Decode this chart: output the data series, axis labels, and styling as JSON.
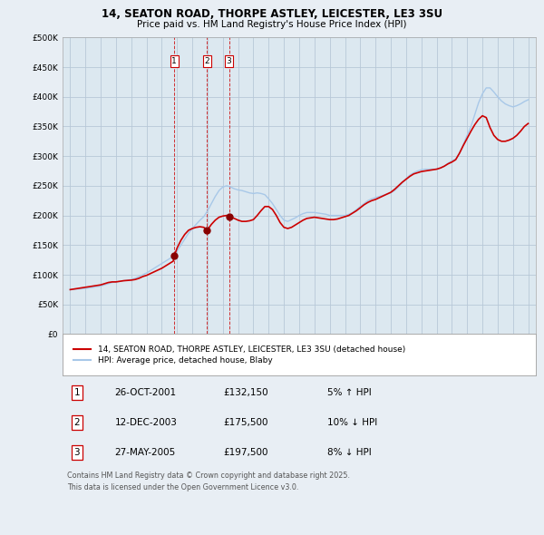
{
  "title_line1": "14, SEATON ROAD, THORPE ASTLEY, LEICESTER, LE3 3SU",
  "title_line2": "Price paid vs. HM Land Registry's House Price Index (HPI)",
  "legend_line1": "14, SEATON ROAD, THORPE ASTLEY, LEICESTER, LE3 3SU (detached house)",
  "legend_line2": "HPI: Average price, detached house, Blaby",
  "footer": "Contains HM Land Registry data © Crown copyright and database right 2025.\nThis data is licensed under the Open Government Licence v3.0.",
  "transactions": [
    {
      "num": 1,
      "date": "26-OCT-2001",
      "price": 132150,
      "pct": "5%",
      "dir": "↑",
      "x_year": 2001.82
    },
    {
      "num": 2,
      "date": "12-DEC-2003",
      "price": 175500,
      "pct": "10%",
      "dir": "↓",
      "x_year": 2003.95
    },
    {
      "num": 3,
      "date": "27-MAY-2005",
      "price": 197500,
      "pct": "8%",
      "dir": "↓",
      "x_year": 2005.4
    }
  ],
  "hpi_color": "#a8c8e8",
  "price_color": "#CC0000",
  "background_color": "#e8eef4",
  "plot_bg_color": "#dce8f0",
  "grid_color": "#b8c8d8",
  "ylim": [
    0,
    500000
  ],
  "xlim": [
    1994.5,
    2025.5
  ],
  "yticks": [
    0,
    50000,
    100000,
    150000,
    200000,
    250000,
    300000,
    350000,
    400000,
    450000,
    500000
  ],
  "ytick_labels": [
    "£0",
    "£50K",
    "£100K",
    "£150K",
    "£200K",
    "£250K",
    "£300K",
    "£350K",
    "£400K",
    "£450K",
    "£500K"
  ],
  "hpi_data": [
    [
      1995.0,
      75000
    ],
    [
      1995.25,
      75500
    ],
    [
      1995.5,
      76000
    ],
    [
      1995.75,
      76500
    ],
    [
      1996.0,
      77000
    ],
    [
      1996.25,
      78000
    ],
    [
      1996.5,
      79000
    ],
    [
      1996.75,
      80000
    ],
    [
      1997.0,
      81000
    ],
    [
      1997.25,
      83000
    ],
    [
      1997.5,
      85000
    ],
    [
      1997.75,
      87000
    ],
    [
      1998.0,
      88000
    ],
    [
      1998.25,
      89000
    ],
    [
      1998.5,
      90000
    ],
    [
      1998.75,
      91000
    ],
    [
      1999.0,
      92000
    ],
    [
      1999.25,
      94000
    ],
    [
      1999.5,
      97000
    ],
    [
      1999.75,
      100000
    ],
    [
      2000.0,
      103000
    ],
    [
      2000.25,
      107000
    ],
    [
      2000.5,
      111000
    ],
    [
      2000.75,
      115000
    ],
    [
      2001.0,
      119000
    ],
    [
      2001.25,
      123000
    ],
    [
      2001.5,
      127000
    ],
    [
      2001.75,
      131000
    ],
    [
      2002.0,
      140000
    ],
    [
      2002.25,
      150000
    ],
    [
      2002.5,
      160000
    ],
    [
      2002.75,
      170000
    ],
    [
      2003.0,
      178000
    ],
    [
      2003.25,
      185000
    ],
    [
      2003.5,
      192000
    ],
    [
      2003.75,
      198000
    ],
    [
      2004.0,
      208000
    ],
    [
      2004.25,
      220000
    ],
    [
      2004.5,
      232000
    ],
    [
      2004.75,
      242000
    ],
    [
      2005.0,
      248000
    ],
    [
      2005.25,
      250000
    ],
    [
      2005.5,
      248000
    ],
    [
      2005.75,
      245000
    ],
    [
      2006.0,
      243000
    ],
    [
      2006.25,
      242000
    ],
    [
      2006.5,
      240000
    ],
    [
      2006.75,
      238000
    ],
    [
      2007.0,
      237000
    ],
    [
      2007.25,
      238000
    ],
    [
      2007.5,
      237000
    ],
    [
      2007.75,
      235000
    ],
    [
      2008.0,
      228000
    ],
    [
      2008.25,
      220000
    ],
    [
      2008.5,
      210000
    ],
    [
      2008.75,
      200000
    ],
    [
      2009.0,
      192000
    ],
    [
      2009.25,
      190000
    ],
    [
      2009.5,
      193000
    ],
    [
      2009.75,
      196000
    ],
    [
      2010.0,
      200000
    ],
    [
      2010.25,
      203000
    ],
    [
      2010.5,
      205000
    ],
    [
      2010.75,
      205000
    ],
    [
      2011.0,
      205000
    ],
    [
      2011.25,
      204000
    ],
    [
      2011.5,
      203000
    ],
    [
      2011.75,
      202000
    ],
    [
      2012.0,
      200000
    ],
    [
      2012.25,
      200000
    ],
    [
      2012.5,
      200000
    ],
    [
      2012.75,
      200000
    ],
    [
      2013.0,
      200000
    ],
    [
      2013.25,
      202000
    ],
    [
      2013.5,
      205000
    ],
    [
      2013.75,
      210000
    ],
    [
      2014.0,
      215000
    ],
    [
      2014.25,
      220000
    ],
    [
      2014.5,
      225000
    ],
    [
      2014.75,
      228000
    ],
    [
      2015.0,
      230000
    ],
    [
      2015.25,
      232000
    ],
    [
      2015.5,
      234000
    ],
    [
      2015.75,
      236000
    ],
    [
      2016.0,
      238000
    ],
    [
      2016.25,
      242000
    ],
    [
      2016.5,
      248000
    ],
    [
      2016.75,
      255000
    ],
    [
      2017.0,
      262000
    ],
    [
      2017.25,
      268000
    ],
    [
      2017.5,
      272000
    ],
    [
      2017.75,
      275000
    ],
    [
      2018.0,
      277000
    ],
    [
      2018.25,
      278000
    ],
    [
      2018.5,
      278000
    ],
    [
      2018.75,
      278000
    ],
    [
      2019.0,
      278000
    ],
    [
      2019.25,
      280000
    ],
    [
      2019.5,
      283000
    ],
    [
      2019.75,
      288000
    ],
    [
      2020.0,
      292000
    ],
    [
      2020.25,
      295000
    ],
    [
      2020.5,
      305000
    ],
    [
      2020.75,
      320000
    ],
    [
      2021.0,
      335000
    ],
    [
      2021.25,
      350000
    ],
    [
      2021.5,
      370000
    ],
    [
      2021.75,
      390000
    ],
    [
      2022.0,
      405000
    ],
    [
      2022.25,
      415000
    ],
    [
      2022.5,
      415000
    ],
    [
      2022.75,
      408000
    ],
    [
      2023.0,
      400000
    ],
    [
      2023.25,
      393000
    ],
    [
      2023.5,
      388000
    ],
    [
      2023.75,
      385000
    ],
    [
      2024.0,
      383000
    ],
    [
      2024.25,
      385000
    ],
    [
      2024.5,
      388000
    ],
    [
      2024.75,
      392000
    ],
    [
      2025.0,
      395000
    ]
  ],
  "price_data": [
    [
      1995.0,
      75000
    ],
    [
      1995.25,
      76000
    ],
    [
      1995.5,
      77000
    ],
    [
      1995.75,
      78000
    ],
    [
      1996.0,
      79000
    ],
    [
      1996.25,
      80000
    ],
    [
      1996.5,
      81000
    ],
    [
      1996.75,
      82000
    ],
    [
      1997.0,
      83000
    ],
    [
      1997.25,
      85000
    ],
    [
      1997.5,
      87000
    ],
    [
      1997.75,
      88000
    ],
    [
      1998.0,
      88000
    ],
    [
      1998.25,
      89000
    ],
    [
      1998.5,
      90000
    ],
    [
      1998.75,
      90500
    ],
    [
      1999.0,
      91000
    ],
    [
      1999.25,
      92000
    ],
    [
      1999.5,
      94000
    ],
    [
      1999.75,
      97000
    ],
    [
      2000.0,
      99000
    ],
    [
      2000.25,
      102000
    ],
    [
      2000.5,
      105000
    ],
    [
      2000.75,
      108000
    ],
    [
      2001.0,
      111000
    ],
    [
      2001.25,
      115000
    ],
    [
      2001.5,
      119000
    ],
    [
      2001.75,
      123000
    ],
    [
      2001.82,
      132150
    ],
    [
      2002.0,
      145000
    ],
    [
      2002.25,
      158000
    ],
    [
      2002.5,
      168000
    ],
    [
      2002.75,
      175000
    ],
    [
      2003.0,
      178000
    ],
    [
      2003.25,
      180000
    ],
    [
      2003.5,
      181000
    ],
    [
      2003.75,
      180000
    ],
    [
      2003.95,
      175500
    ],
    [
      2004.0,
      176000
    ],
    [
      2004.25,
      185000
    ],
    [
      2004.5,
      192000
    ],
    [
      2004.75,
      197000
    ],
    [
      2005.0,
      199000
    ],
    [
      2005.25,
      200000
    ],
    [
      2005.4,
      197500
    ],
    [
      2005.5,
      197000
    ],
    [
      2005.75,
      195000
    ],
    [
      2006.0,
      192000
    ],
    [
      2006.25,
      190000
    ],
    [
      2006.5,
      190000
    ],
    [
      2006.75,
      191000
    ],
    [
      2007.0,
      193000
    ],
    [
      2007.25,
      200000
    ],
    [
      2007.5,
      208000
    ],
    [
      2007.75,
      215000
    ],
    [
      2008.0,
      215000
    ],
    [
      2008.25,
      210000
    ],
    [
      2008.5,
      200000
    ],
    [
      2008.75,
      188000
    ],
    [
      2009.0,
      180000
    ],
    [
      2009.25,
      178000
    ],
    [
      2009.5,
      180000
    ],
    [
      2009.75,
      184000
    ],
    [
      2010.0,
      188000
    ],
    [
      2010.25,
      192000
    ],
    [
      2010.5,
      195000
    ],
    [
      2010.75,
      196000
    ],
    [
      2011.0,
      197000
    ],
    [
      2011.25,
      196000
    ],
    [
      2011.5,
      195000
    ],
    [
      2011.75,
      194000
    ],
    [
      2012.0,
      193000
    ],
    [
      2012.25,
      193000
    ],
    [
      2012.5,
      194000
    ],
    [
      2012.75,
      196000
    ],
    [
      2013.0,
      198000
    ],
    [
      2013.25,
      200000
    ],
    [
      2013.5,
      204000
    ],
    [
      2013.75,
      208000
    ],
    [
      2014.0,
      213000
    ],
    [
      2014.25,
      218000
    ],
    [
      2014.5,
      222000
    ],
    [
      2014.75,
      225000
    ],
    [
      2015.0,
      227000
    ],
    [
      2015.25,
      230000
    ],
    [
      2015.5,
      233000
    ],
    [
      2015.75,
      236000
    ],
    [
      2016.0,
      239000
    ],
    [
      2016.25,
      244000
    ],
    [
      2016.5,
      250000
    ],
    [
      2016.75,
      256000
    ],
    [
      2017.0,
      261000
    ],
    [
      2017.25,
      266000
    ],
    [
      2017.5,
      270000
    ],
    [
      2017.75,
      272000
    ],
    [
      2018.0,
      274000
    ],
    [
      2018.25,
      275000
    ],
    [
      2018.5,
      276000
    ],
    [
      2018.75,
      277000
    ],
    [
      2019.0,
      278000
    ],
    [
      2019.25,
      280000
    ],
    [
      2019.5,
      283000
    ],
    [
      2019.75,
      287000
    ],
    [
      2020.0,
      290000
    ],
    [
      2020.25,
      294000
    ],
    [
      2020.5,
      305000
    ],
    [
      2020.75,
      318000
    ],
    [
      2021.0,
      330000
    ],
    [
      2021.25,
      342000
    ],
    [
      2021.5,
      353000
    ],
    [
      2021.75,
      362000
    ],
    [
      2022.0,
      368000
    ],
    [
      2022.25,
      365000
    ],
    [
      2022.5,
      348000
    ],
    [
      2022.75,
      335000
    ],
    [
      2023.0,
      328000
    ],
    [
      2023.25,
      325000
    ],
    [
      2023.5,
      325000
    ],
    [
      2023.75,
      327000
    ],
    [
      2024.0,
      330000
    ],
    [
      2024.25,
      335000
    ],
    [
      2024.5,
      342000
    ],
    [
      2024.75,
      350000
    ],
    [
      2025.0,
      355000
    ]
  ]
}
